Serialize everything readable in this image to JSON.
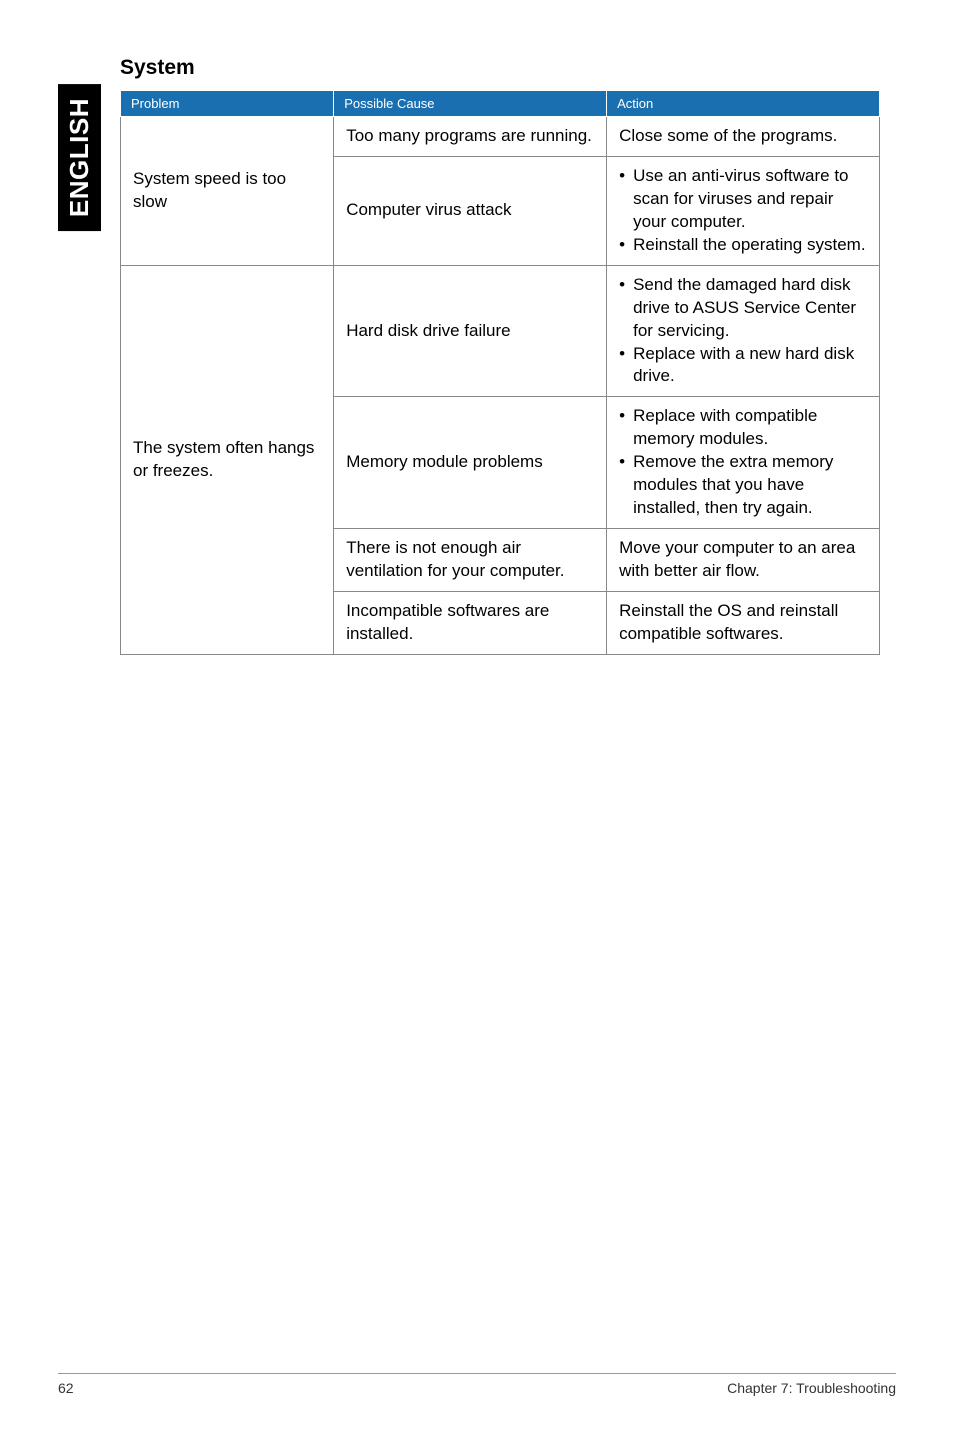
{
  "side_tab": "ENGLISH",
  "section_title": "System",
  "table": {
    "headers": [
      "Problem",
      "Possible Cause",
      "Action"
    ],
    "rows": [
      {
        "problem": "System speed is too slow",
        "cells": [
          {
            "cause": "Too many programs are running.",
            "action_plain": "Close some of the programs."
          },
          {
            "cause": "Computer virus attack",
            "action_bullets": [
              "Use an anti-virus software to scan for viruses and repair your computer.",
              "Reinstall the operating system."
            ]
          }
        ]
      },
      {
        "problem": "The system often hangs or freezes.",
        "cells": [
          {
            "cause": "Hard disk drive failure",
            "action_bullets": [
              "Send the damaged hard disk drive to ASUS Service Center for servicing.",
              "Replace with a new hard disk drive."
            ]
          },
          {
            "cause": "Memory module problems",
            "action_bullets": [
              "Replace with compatible memory modules.",
              "Remove the extra memory modules that you have installed, then try again."
            ]
          },
          {
            "cause": "There is not enough air ventilation for your computer.",
            "action_plain": "Move your computer to an area with better air flow."
          },
          {
            "cause": "Incompatible softwares are installed.",
            "action_plain": "Reinstall the OS and reinstall compatible softwares."
          }
        ]
      }
    ]
  },
  "footer": {
    "page": "62",
    "chapter": "Chapter 7: Troubleshooting"
  },
  "colors": {
    "header_bg": "#1a6fb0",
    "header_text": "#ffffff",
    "border": "#888888",
    "side_tab_bg": "#000000",
    "side_tab_text": "#ffffff",
    "body_bg": "#ffffff"
  }
}
